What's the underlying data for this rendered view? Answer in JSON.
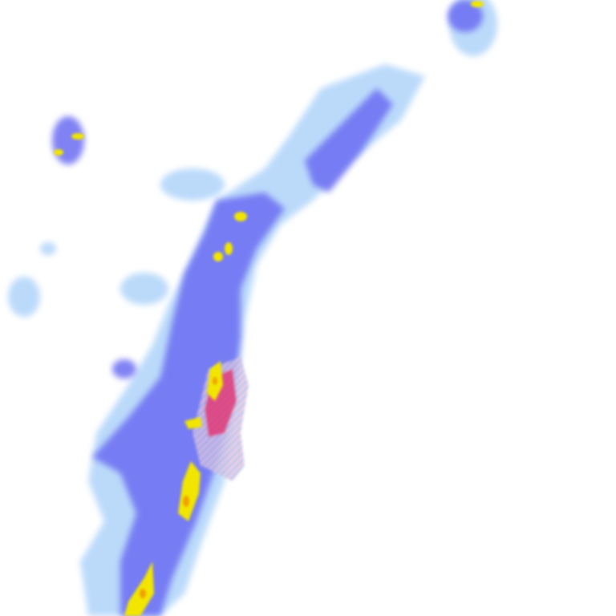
{
  "legend_colors": {
    "light": "#a8d0f8",
    "moderate": "#5a5cf0",
    "heavy": "#2f2fc8",
    "intense": "#f0e800",
    "very_intense": "#f0a000",
    "mixed_precip": "#e0407a",
    "mixed_light": "#f4b8cc",
    "background": "#ffffff"
  }
}
